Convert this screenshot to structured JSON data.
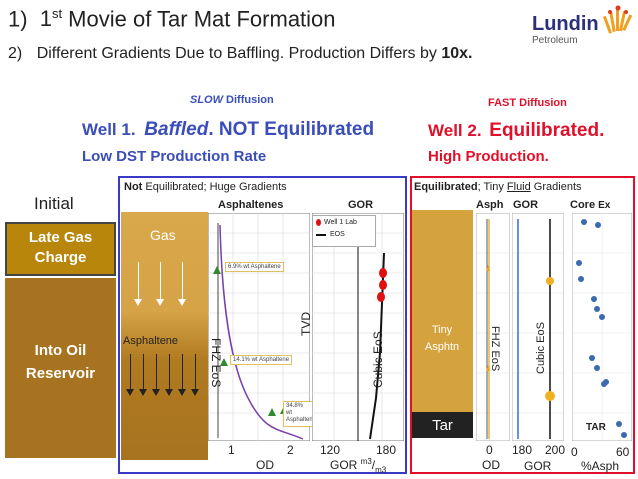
{
  "header": {
    "line1_num": "1)",
    "line1_pre": "1",
    "line1_sup": "st",
    "line1_post": " Movie of Tar Mat Formation",
    "line2_num": "2)",
    "line2_text": "Different Gradients Due to Baffling. Production Differs by ",
    "line2_bold": "10x.",
    "logo_name": "Lundin",
    "logo_sub": "Petroleum"
  },
  "left_heading": {
    "diffusion_em": "SLOW",
    "diffusion_rest": " Diffusion",
    "well_prefix": "Well 1.",
    "well_bold_italic": "Baffled",
    "well_rest": ". NOT Equilibrated",
    "production": "Low DST Production Rate"
  },
  "right_heading": {
    "diffusion": "FAST Diffusion",
    "well_prefix": "Well 2.",
    "well_rest": "Equilibrated.",
    "production": "High Production."
  },
  "initial": {
    "label": "Initial",
    "top_text": "Late Gas Charge",
    "bottom_text": "Into Oil Reservoir"
  },
  "well1": {
    "caption_bold": "Not",
    "caption_rest": " Equilibrated; Huge Gradients",
    "gas_label": "Gas",
    "asphaltene_label": "Asphaltene",
    "asph_header": "Asphaltenes",
    "gor_header": "GOR",
    "fhz_label": "FHZ EoS",
    "tvd_label": "TVD",
    "cubic_label": "Cubic EoS",
    "legend_lab": "Well 1 Lab",
    "legend_eos": "EOS",
    "note1": "6.9% wt Asphaltene",
    "note2": "14.1% wt Asphaltene",
    "note3": "34.8% wt Asphaltene",
    "od_ticks": [
      "1",
      "2"
    ],
    "od_label": "OD",
    "gor_ticks": [
      "120",
      "180"
    ],
    "gor_label_pre": "GOR ",
    "gor_unit_sup": "m3",
    "gor_unit_sub": "m3"
  },
  "well2": {
    "caption_bold": "Equilibrated",
    "caption_mid": "; Tiny ",
    "caption_fluid": "Fluid",
    "caption_rest": " Gradients",
    "tiny_label": "Tiny Asphtn",
    "tar_label": "Tar",
    "asph_header": "Asph",
    "gor_header": "GOR",
    "core_header": "Core",
    "core_ex": "Ex",
    "fhz_label": "FHZ EoS",
    "cubic_label": "Cubic EoS",
    "tar_small": "TAR",
    "od_tick": "0",
    "od_label": "OD",
    "gor_ticks": [
      "180",
      "200"
    ],
    "gor_label": "GOR",
    "pct_ticks": [
      "0",
      "60"
    ],
    "pct_label": "%Asph"
  },
  "colors": {
    "gold": "#b8860b",
    "gold_light": "#d9a84a",
    "brown": "#a87320",
    "blue_frame": "#3a3ac8",
    "red_frame": "#e0102a",
    "well1_blue": "#3a4db8",
    "red_text": "#e0102a"
  },
  "icons": {
    "logo": "lundin-flame-icon",
    "legend_lab": "red-dot-icon",
    "legend_eos": "black-line-icon"
  }
}
